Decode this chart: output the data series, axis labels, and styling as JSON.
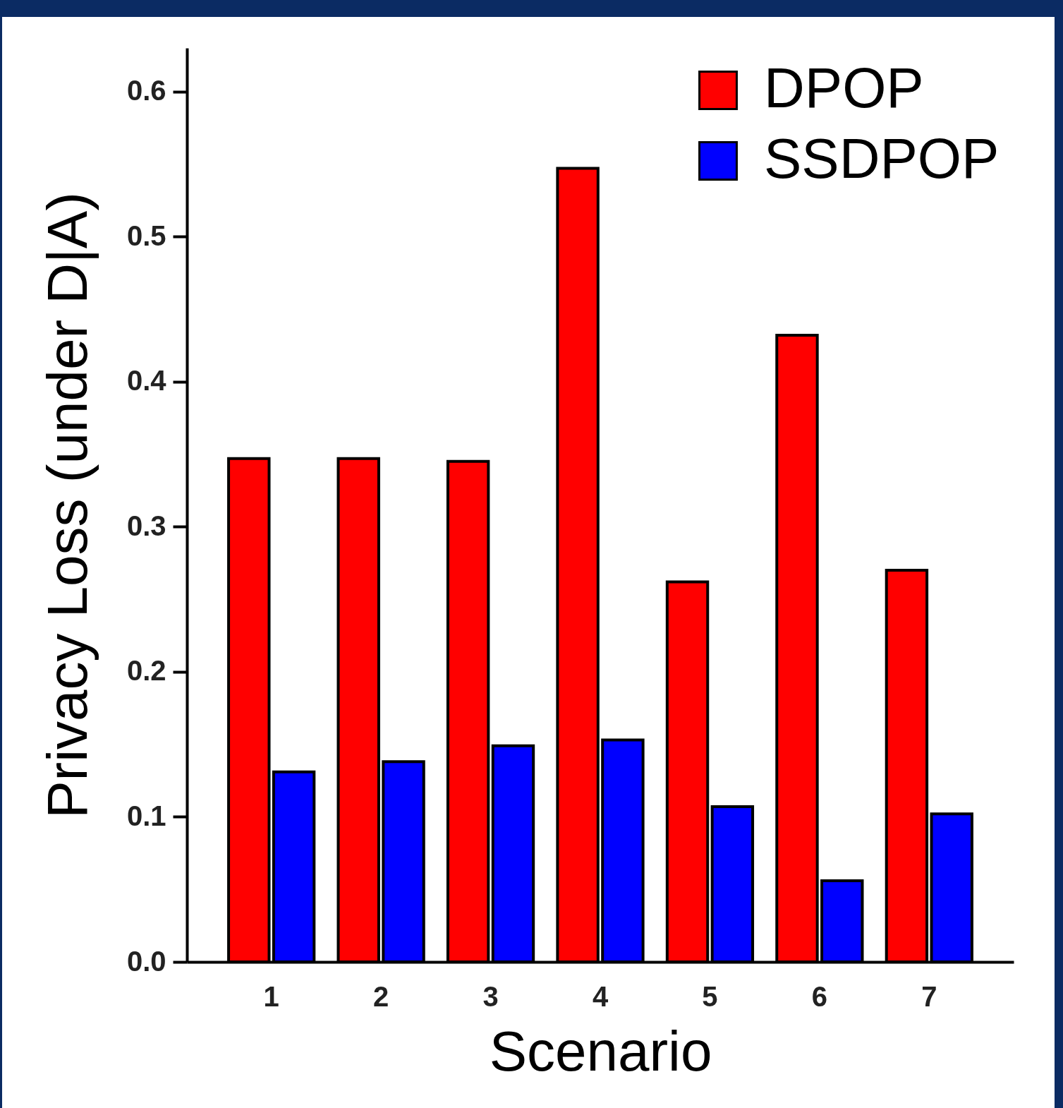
{
  "chart_data": {
    "type": "bar",
    "xlabel": "Scenario",
    "ylabel": "Privacy Loss (under D|A)",
    "categories": [
      "1",
      "2",
      "3",
      "4",
      "5",
      "6",
      "7"
    ],
    "series": [
      {
        "name": "DPOP",
        "color": "#ff0000",
        "values": [
          0.347,
          0.347,
          0.345,
          0.547,
          0.262,
          0.432,
          0.27
        ]
      },
      {
        "name": "SSDPOP",
        "color": "#0000ff",
        "values": [
          0.131,
          0.138,
          0.149,
          0.153,
          0.107,
          0.056,
          0.102
        ]
      }
    ],
    "ylim": [
      0,
      0.63
    ],
    "yticks": [
      {
        "value": 0,
        "label": "0.0"
      },
      0.1,
      0.2,
      0.3,
      0.4,
      0.5,
      0.6
    ],
    "legend": "top right"
  }
}
